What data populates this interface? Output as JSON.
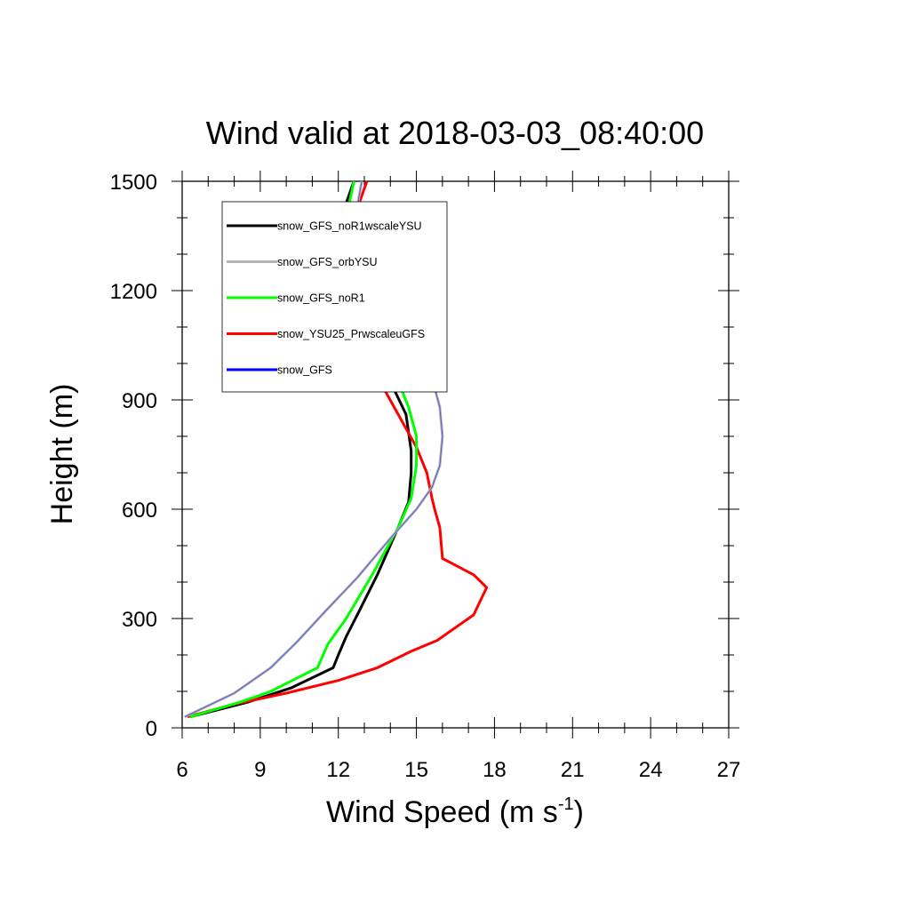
{
  "chart_data": {
    "type": "line",
    "title": "Wind valid at 2018-03-03_08:40:00",
    "xlabel": "Wind Speed (m s",
    "xlabel_sup": "-1",
    "xlabel_close": ")",
    "ylabel": "Height (m)",
    "xlim": [
      6,
      27
    ],
    "ylim": [
      0,
      1500
    ],
    "xticks": [
      6,
      9,
      12,
      15,
      18,
      21,
      24,
      27
    ],
    "yticks": [
      0,
      300,
      600,
      900,
      1200,
      1500
    ],
    "grid": false,
    "legend_position": "top-left",
    "series": [
      {
        "name": "snow_GFS_noR1wscaleYSU",
        "color": "#000000",
        "points": [
          [
            6.3,
            30
          ],
          [
            8.5,
            70
          ],
          [
            10.2,
            110
          ],
          [
            11.8,
            165
          ],
          [
            12.0,
            200
          ],
          [
            12.3,
            250
          ],
          [
            12.8,
            320
          ],
          [
            13.5,
            420
          ],
          [
            14.3,
            550
          ],
          [
            14.7,
            620
          ],
          [
            14.8,
            700
          ],
          [
            14.8,
            760
          ],
          [
            14.6,
            860
          ],
          [
            14.0,
            950
          ],
          [
            13.3,
            1030
          ],
          [
            12.6,
            1100
          ],
          [
            12.0,
            1170
          ],
          [
            11.6,
            1240
          ],
          [
            11.7,
            1300
          ],
          [
            12.0,
            1380
          ],
          [
            12.6,
            1500
          ]
        ]
      },
      {
        "name": "snow_GFS_orbYSU",
        "color": "#b4b4b4",
        "points": [
          [
            6.1,
            30
          ],
          [
            8.0,
            95
          ],
          [
            9.4,
            165
          ],
          [
            10.4,
            235
          ],
          [
            11.5,
            320
          ],
          [
            12.7,
            410
          ],
          [
            14.0,
            520
          ],
          [
            15.0,
            600
          ],
          [
            15.6,
            660
          ],
          [
            15.9,
            720
          ],
          [
            16.0,
            800
          ],
          [
            15.9,
            880
          ],
          [
            15.6,
            960
          ],
          [
            15.0,
            1040
          ],
          [
            14.0,
            1120
          ],
          [
            13.3,
            1180
          ],
          [
            12.8,
            1230
          ],
          [
            12.6,
            1290
          ],
          [
            12.6,
            1380
          ],
          [
            12.9,
            1500
          ]
        ]
      },
      {
        "name": "snow_GFS_noR1",
        "color": "#00ff00",
        "points": [
          [
            6.3,
            30
          ],
          [
            8.2,
            70
          ],
          [
            9.4,
            100
          ],
          [
            11.2,
            165
          ],
          [
            11.6,
            230
          ],
          [
            12.3,
            300
          ],
          [
            13.3,
            420
          ],
          [
            14.3,
            550
          ],
          [
            14.8,
            630
          ],
          [
            15.0,
            720
          ],
          [
            15.0,
            800
          ],
          [
            14.7,
            880
          ],
          [
            14.3,
            950
          ],
          [
            13.8,
            1010
          ],
          [
            13.0,
            1080
          ],
          [
            12.4,
            1140
          ],
          [
            11.9,
            1200
          ],
          [
            11.8,
            1260
          ],
          [
            11.9,
            1320
          ],
          [
            12.3,
            1400
          ],
          [
            12.6,
            1500
          ]
        ]
      },
      {
        "name": "snow_YSU25_PrwscaleuGFS",
        "color": "#ff0000",
        "points": [
          [
            6.2,
            30
          ],
          [
            8.0,
            65
          ],
          [
            10.0,
            95
          ],
          [
            12.0,
            130
          ],
          [
            13.5,
            165
          ],
          [
            14.8,
            210
          ],
          [
            15.8,
            240
          ],
          [
            16.6,
            280
          ],
          [
            17.2,
            310
          ],
          [
            17.7,
            385
          ],
          [
            17.2,
            420
          ],
          [
            16.0,
            465
          ],
          [
            15.9,
            550
          ],
          [
            15.7,
            600
          ],
          [
            15.6,
            630
          ],
          [
            15.4,
            700
          ],
          [
            15.0,
            770
          ],
          [
            14.3,
            860
          ],
          [
            13.6,
            950
          ],
          [
            13.0,
            1040
          ],
          [
            12.4,
            1130
          ],
          [
            11.9,
            1200
          ],
          [
            11.8,
            1260
          ],
          [
            12.1,
            1320
          ],
          [
            12.6,
            1400
          ],
          [
            13.1,
            1500
          ]
        ]
      },
      {
        "name": "snow_GFS",
        "color": "#0000ff",
        "points": [
          [
            6.1,
            30
          ],
          [
            8.0,
            95
          ],
          [
            9.4,
            165
          ],
          [
            10.4,
            235
          ],
          [
            11.5,
            320
          ],
          [
            12.7,
            410
          ],
          [
            14.0,
            520
          ],
          [
            15.0,
            600
          ],
          [
            15.6,
            660
          ],
          [
            15.9,
            720
          ],
          [
            16.0,
            800
          ],
          [
            15.9,
            880
          ],
          [
            15.6,
            960
          ],
          [
            15.0,
            1040
          ],
          [
            14.0,
            1120
          ],
          [
            13.3,
            1180
          ],
          [
            12.8,
            1230
          ],
          [
            12.6,
            1290
          ],
          [
            12.6,
            1380
          ],
          [
            12.9,
            1500
          ]
        ]
      }
    ]
  }
}
